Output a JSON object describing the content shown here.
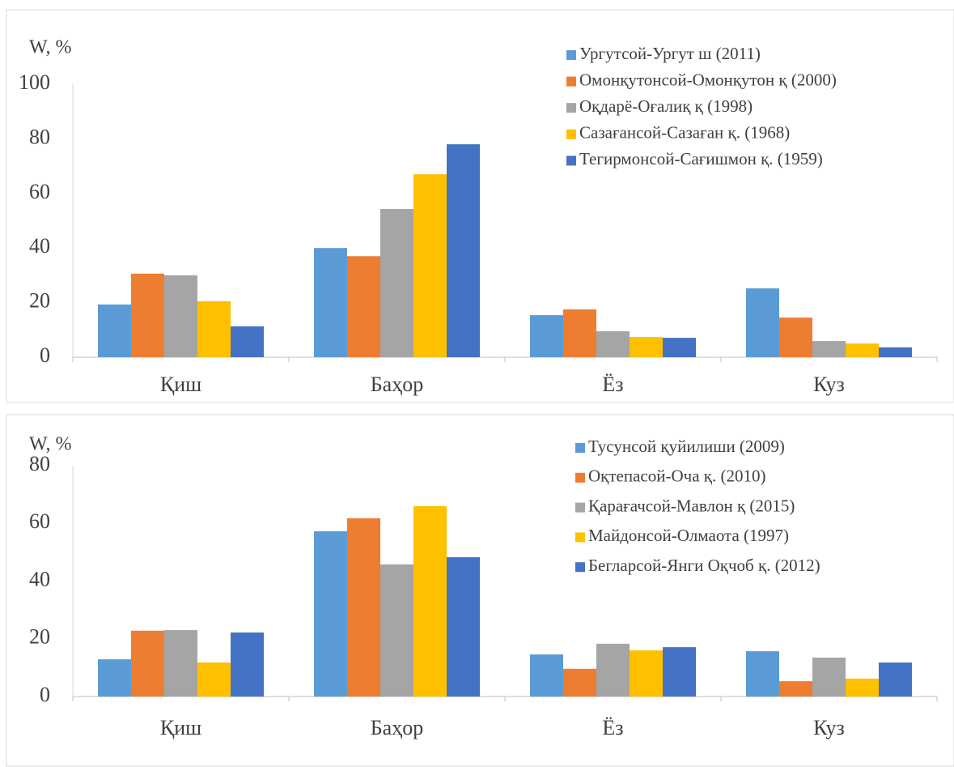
{
  "chart_data": [
    {
      "type": "bar",
      "y_label": "W, %",
      "categories": [
        "Қиш",
        "Баҳор",
        "Ёз",
        "Куз"
      ],
      "ylim": [
        0,
        100
      ],
      "yticks": [
        0,
        20,
        40,
        60,
        80,
        100
      ],
      "grid": false,
      "legend": "upper right",
      "series": [
        {
          "name": "Ургутсой-Ургут ш (2011)",
          "color": "#5b9bd5",
          "values": [
            19.3,
            40,
            15.4,
            25.2
          ]
        },
        {
          "name": "Омонқутонсой-Омонқутон қ (2000)",
          "color": "#ed7d31",
          "values": [
            30.6,
            37,
            17.5,
            14.5
          ]
        },
        {
          "name": "Оқдарё-Оғалиқ қ (1998)",
          "color": "#a5a5a5",
          "values": [
            30,
            54.3,
            9.5,
            5.9
          ]
        },
        {
          "name": "Сазағансой-Сазаған қ. (1968)",
          "color": "#ffc000",
          "values": [
            20.5,
            67,
            7.4,
            5
          ]
        },
        {
          "name": "Тегирмонсой-Сағишмон қ. (1959)",
          "color": "#4472c4",
          "values": [
            11.3,
            78,
            7.1,
            3.6
          ]
        }
      ]
    },
    {
      "type": "bar",
      "y_label": "W, %",
      "categories": [
        "Қиш",
        "Баҳор",
        "Ёз",
        "Куз"
      ],
      "ylim": [
        0,
        80
      ],
      "yticks": [
        0,
        20,
        40,
        60,
        80
      ],
      "grid": false,
      "legend": "upper right",
      "series": [
        {
          "name": "Тусунсой қуйилиши (2009)",
          "color": "#5b9bd5",
          "values": [
            12.9,
            57.3,
            14.6,
            15.7
          ]
        },
        {
          "name": "Оқтепасой-Оча қ. (2010)",
          "color": "#ed7d31",
          "values": [
            22.8,
            61.8,
            9.6,
            5.3
          ]
        },
        {
          "name": "Қарағачсой-Мавлон қ (2015)",
          "color": "#a5a5a5",
          "values": [
            23,
            45.8,
            18.3,
            13.5
          ]
        },
        {
          "name": "Майдонсой-Олмаота (1997)",
          "color": "#ffc000",
          "values": [
            11.8,
            66,
            16,
            6.2
          ]
        },
        {
          "name": "Бегларсой-Янги Оқчоб қ. (2012)",
          "color": "#4472c4",
          "values": [
            22.2,
            48.3,
            17.1,
            11.8
          ]
        }
      ]
    }
  ]
}
